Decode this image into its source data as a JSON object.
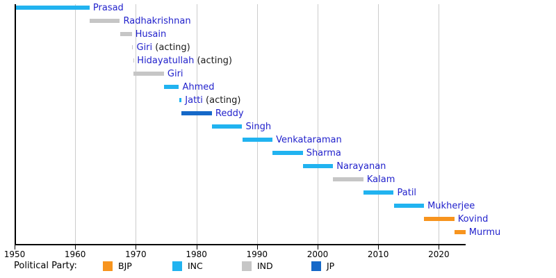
{
  "chart_data": {
    "type": "timeline",
    "title": "",
    "description": "Terms of Presidents of India as horizontal bars colored by political party",
    "x_ticks": [
      1950,
      1960,
      1970,
      1980,
      1990,
      2000,
      2010,
      2020
    ],
    "x_range": [
      1950,
      2024.4
    ],
    "grid": true,
    "bars": [
      {
        "name": "Prasad",
        "note": "",
        "party": "INC",
        "start": 1950.07,
        "end": 1962.37
      },
      {
        "name": "Radhakrishnan",
        "note": "",
        "party": "IND",
        "start": 1962.37,
        "end": 1967.37
      },
      {
        "name": "Husain",
        "note": "",
        "party": "IND",
        "start": 1967.37,
        "end": 1969.34
      },
      {
        "name": "Giri",
        "note": "(acting)",
        "party": "IND",
        "start": 1969.34,
        "end": 1969.55
      },
      {
        "name": "Hidayatullah",
        "note": "(acting)",
        "party": "IND",
        "start": 1969.55,
        "end": 1969.65
      },
      {
        "name": "Giri",
        "note": "",
        "party": "IND",
        "start": 1969.65,
        "end": 1974.65
      },
      {
        "name": "Ahmed",
        "note": "",
        "party": "INC",
        "start": 1974.65,
        "end": 1977.12
      },
      {
        "name": "Jatti",
        "note": "(acting)",
        "party": "INC",
        "start": 1977.12,
        "end": 1977.56
      },
      {
        "name": "Reddy",
        "note": "",
        "party": "JP",
        "start": 1977.56,
        "end": 1982.56
      },
      {
        "name": "Singh",
        "note": "",
        "party": "INC",
        "start": 1982.56,
        "end": 1987.56
      },
      {
        "name": "Venkataraman",
        "note": "",
        "party": "INC",
        "start": 1987.56,
        "end": 1992.56
      },
      {
        "name": "Sharma",
        "note": "",
        "party": "INC",
        "start": 1992.56,
        "end": 1997.56
      },
      {
        "name": "Narayanan",
        "note": "",
        "party": "INC",
        "start": 1997.56,
        "end": 2002.56
      },
      {
        "name": "Kalam",
        "note": "",
        "party": "IND",
        "start": 2002.56,
        "end": 2007.56
      },
      {
        "name": "Patil",
        "note": "",
        "party": "INC",
        "start": 2007.56,
        "end": 2012.56
      },
      {
        "name": "Mukherjee",
        "note": "",
        "party": "INC",
        "start": 2012.56,
        "end": 2017.56
      },
      {
        "name": "Kovind",
        "note": "",
        "party": "BJP",
        "start": 2017.56,
        "end": 2022.56
      },
      {
        "name": "Murmu",
        "note": "",
        "party": "BJP",
        "start": 2022.56,
        "end": 2024.4
      }
    ],
    "legend": {
      "label": "Political Party:",
      "entries": [
        {
          "label": "BJP",
          "color": "#f7941e"
        },
        {
          "label": "INC",
          "color": "#21b3f0"
        },
        {
          "label": "IND",
          "color": "#c6c6c6"
        },
        {
          "label": "JP",
          "color": "#1568c8"
        }
      ],
      "position": "bottom"
    },
    "colors": {
      "party_BJP": "#f7941e",
      "party_INC": "#21b3f0",
      "party_IND": "#c6c6c6",
      "party_JP": "#1568c8",
      "name_link": "#2222cc",
      "note_text": "#1a1a1a",
      "gridline": "#cccccc",
      "axis": "#000000"
    }
  }
}
